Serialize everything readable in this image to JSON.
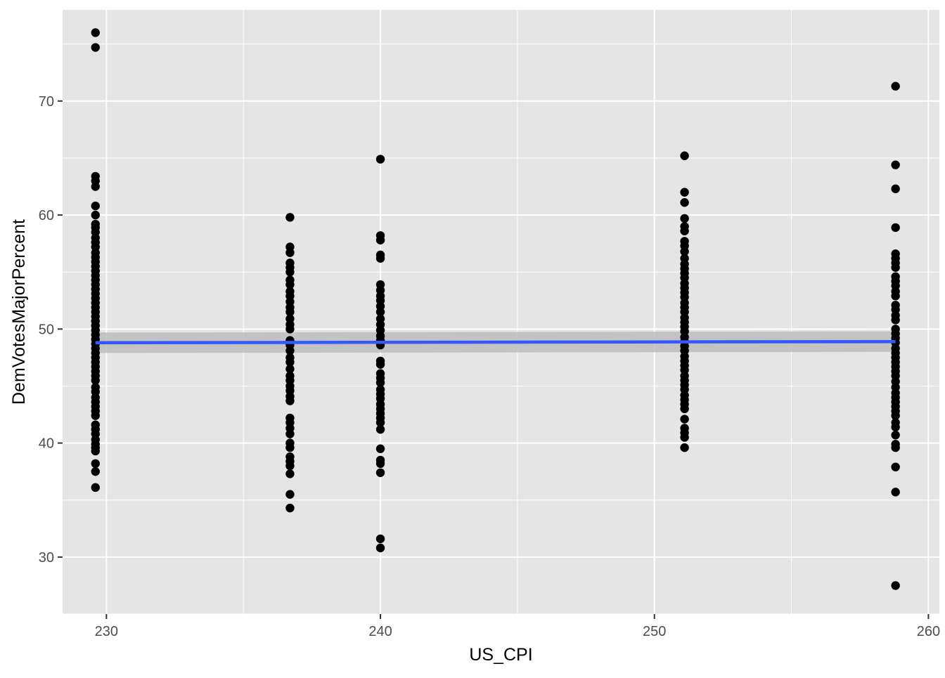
{
  "chart_data": {
    "type": "scatter",
    "title": "",
    "xlabel": "US_CPI",
    "ylabel": "DemVotesMajorPercent",
    "xlim": [
      228.4,
      260.4
    ],
    "ylim": [
      25.0,
      78.0
    ],
    "x_ticks": [
      230,
      240,
      250,
      260
    ],
    "x_tick_labels": [
      "230",
      "240",
      "250",
      "260"
    ],
    "y_ticks": [
      30,
      40,
      50,
      60,
      70
    ],
    "y_tick_labels": [
      "30",
      "40",
      "50",
      "60",
      "70"
    ],
    "grid": true,
    "legend": "none",
    "colors": {
      "panel_background": "#e5e5e5",
      "gridline": "#ffffff",
      "point": "#000000",
      "fit_line": "#3358ff",
      "confidence_band": "#bdbdbd"
    },
    "series": [
      {
        "type": "scatter",
        "points": [
          {
            "x": 229.6,
            "y": 76.0
          },
          {
            "x": 229.6,
            "y": 74.7
          },
          {
            "x": 229.6,
            "y": 63.4
          },
          {
            "x": 229.6,
            "y": 63.0
          },
          {
            "x": 229.6,
            "y": 62.5
          },
          {
            "x": 229.6,
            "y": 60.8
          },
          {
            "x": 229.6,
            "y": 60.0
          },
          {
            "x": 229.6,
            "y": 59.2
          },
          {
            "x": 229.6,
            "y": 58.9
          },
          {
            "x": 229.6,
            "y": 58.5
          },
          {
            "x": 229.6,
            "y": 58.0
          },
          {
            "x": 229.6,
            "y": 57.6
          },
          {
            "x": 229.6,
            "y": 57.2
          },
          {
            "x": 229.6,
            "y": 56.7
          },
          {
            "x": 229.6,
            "y": 56.3
          },
          {
            "x": 229.6,
            "y": 55.9
          },
          {
            "x": 229.6,
            "y": 55.5
          },
          {
            "x": 229.6,
            "y": 55.1
          },
          {
            "x": 229.6,
            "y": 54.7
          },
          {
            "x": 229.6,
            "y": 54.3
          },
          {
            "x": 229.6,
            "y": 53.9
          },
          {
            "x": 229.6,
            "y": 53.5
          },
          {
            "x": 229.6,
            "y": 53.1
          },
          {
            "x": 229.6,
            "y": 52.7
          },
          {
            "x": 229.6,
            "y": 52.3
          },
          {
            "x": 229.6,
            "y": 51.9
          },
          {
            "x": 229.6,
            "y": 51.5
          },
          {
            "x": 229.6,
            "y": 51.1
          },
          {
            "x": 229.6,
            "y": 50.7
          },
          {
            "x": 229.6,
            "y": 50.3
          },
          {
            "x": 229.6,
            "y": 49.9
          },
          {
            "x": 229.6,
            "y": 49.5
          },
          {
            "x": 229.6,
            "y": 49.1
          },
          {
            "x": 229.6,
            "y": 48.7
          },
          {
            "x": 229.6,
            "y": 48.3
          },
          {
            "x": 229.6,
            "y": 47.9
          },
          {
            "x": 229.6,
            "y": 47.5
          },
          {
            "x": 229.6,
            "y": 47.1
          },
          {
            "x": 229.6,
            "y": 46.7
          },
          {
            "x": 229.6,
            "y": 46.3
          },
          {
            "x": 229.6,
            "y": 45.9
          },
          {
            "x": 229.6,
            "y": 45.5
          },
          {
            "x": 229.6,
            "y": 44.9
          },
          {
            "x": 229.6,
            "y": 44.5
          },
          {
            "x": 229.6,
            "y": 44.0
          },
          {
            "x": 229.6,
            "y": 43.6
          },
          {
            "x": 229.6,
            "y": 43.2
          },
          {
            "x": 229.6,
            "y": 42.8
          },
          {
            "x": 229.6,
            "y": 42.4
          },
          {
            "x": 229.6,
            "y": 41.6
          },
          {
            "x": 229.6,
            "y": 41.2
          },
          {
            "x": 229.6,
            "y": 40.8
          },
          {
            "x": 229.6,
            "y": 40.3
          },
          {
            "x": 229.6,
            "y": 39.9
          },
          {
            "x": 229.6,
            "y": 39.6
          },
          {
            "x": 229.6,
            "y": 39.3
          },
          {
            "x": 229.6,
            "y": 38.2
          },
          {
            "x": 229.6,
            "y": 37.5
          },
          {
            "x": 229.6,
            "y": 36.1
          },
          {
            "x": 236.7,
            "y": 59.8
          },
          {
            "x": 236.7,
            "y": 57.2
          },
          {
            "x": 236.7,
            "y": 56.7
          },
          {
            "x": 236.7,
            "y": 55.8
          },
          {
            "x": 236.7,
            "y": 55.4
          },
          {
            "x": 236.7,
            "y": 55.0
          },
          {
            "x": 236.7,
            "y": 54.3
          },
          {
            "x": 236.7,
            "y": 53.9
          },
          {
            "x": 236.7,
            "y": 53.3
          },
          {
            "x": 236.7,
            "y": 52.9
          },
          {
            "x": 236.7,
            "y": 52.4
          },
          {
            "x": 236.7,
            "y": 51.9
          },
          {
            "x": 236.7,
            "y": 51.5
          },
          {
            "x": 236.7,
            "y": 50.9
          },
          {
            "x": 236.7,
            "y": 50.4
          },
          {
            "x": 236.7,
            "y": 50.0
          },
          {
            "x": 236.7,
            "y": 49.0
          },
          {
            "x": 236.7,
            "y": 48.6
          },
          {
            "x": 236.7,
            "y": 48.1
          },
          {
            "x": 236.7,
            "y": 47.5
          },
          {
            "x": 236.7,
            "y": 47.1
          },
          {
            "x": 236.7,
            "y": 46.5
          },
          {
            "x": 236.7,
            "y": 45.9
          },
          {
            "x": 236.7,
            "y": 45.5
          },
          {
            "x": 236.7,
            "y": 45.0
          },
          {
            "x": 236.7,
            "y": 44.6
          },
          {
            "x": 236.7,
            "y": 44.1
          },
          {
            "x": 236.7,
            "y": 43.7
          },
          {
            "x": 236.7,
            "y": 42.2
          },
          {
            "x": 236.7,
            "y": 41.8
          },
          {
            "x": 236.7,
            "y": 41.3
          },
          {
            "x": 236.7,
            "y": 40.8
          },
          {
            "x": 236.7,
            "y": 40.0
          },
          {
            "x": 236.7,
            "y": 39.6
          },
          {
            "x": 236.7,
            "y": 38.8
          },
          {
            "x": 236.7,
            "y": 38.4
          },
          {
            "x": 236.7,
            "y": 38.0
          },
          {
            "x": 236.7,
            "y": 37.3
          },
          {
            "x": 236.7,
            "y": 35.5
          },
          {
            "x": 236.7,
            "y": 34.3
          },
          {
            "x": 240.0,
            "y": 64.9
          },
          {
            "x": 240.0,
            "y": 58.2
          },
          {
            "x": 240.0,
            "y": 57.8
          },
          {
            "x": 240.0,
            "y": 56.5
          },
          {
            "x": 240.0,
            "y": 56.2
          },
          {
            "x": 240.0,
            "y": 53.9
          },
          {
            "x": 240.0,
            "y": 53.4
          },
          {
            "x": 240.0,
            "y": 52.9
          },
          {
            "x": 240.0,
            "y": 52.5
          },
          {
            "x": 240.0,
            "y": 52.0
          },
          {
            "x": 240.0,
            "y": 51.5
          },
          {
            "x": 240.0,
            "y": 50.9
          },
          {
            "x": 240.0,
            "y": 50.4
          },
          {
            "x": 240.0,
            "y": 49.9
          },
          {
            "x": 240.0,
            "y": 49.4
          },
          {
            "x": 240.0,
            "y": 49.0
          },
          {
            "x": 240.0,
            "y": 48.6
          },
          {
            "x": 240.0,
            "y": 47.2
          },
          {
            "x": 240.0,
            "y": 46.9
          },
          {
            "x": 240.0,
            "y": 46.1
          },
          {
            "x": 240.0,
            "y": 45.7
          },
          {
            "x": 240.0,
            "y": 45.3
          },
          {
            "x": 240.0,
            "y": 44.7
          },
          {
            "x": 240.0,
            "y": 44.3
          },
          {
            "x": 240.0,
            "y": 43.9
          },
          {
            "x": 240.0,
            "y": 43.4
          },
          {
            "x": 240.0,
            "y": 43.0
          },
          {
            "x": 240.0,
            "y": 42.6
          },
          {
            "x": 240.0,
            "y": 42.2
          },
          {
            "x": 240.0,
            "y": 41.8
          },
          {
            "x": 240.0,
            "y": 41.2
          },
          {
            "x": 240.0,
            "y": 39.5
          },
          {
            "x": 240.0,
            "y": 38.5
          },
          {
            "x": 240.0,
            "y": 38.2
          },
          {
            "x": 240.0,
            "y": 37.4
          },
          {
            "x": 240.0,
            "y": 31.6
          },
          {
            "x": 240.0,
            "y": 30.8
          },
          {
            "x": 251.1,
            "y": 65.2
          },
          {
            "x": 251.1,
            "y": 62.0
          },
          {
            "x": 251.1,
            "y": 61.1
          },
          {
            "x": 251.1,
            "y": 59.7
          },
          {
            "x": 251.1,
            "y": 59.0
          },
          {
            "x": 251.1,
            "y": 58.6
          },
          {
            "x": 251.1,
            "y": 57.7
          },
          {
            "x": 251.1,
            "y": 57.3
          },
          {
            "x": 251.1,
            "y": 56.8
          },
          {
            "x": 251.1,
            "y": 56.2
          },
          {
            "x": 251.1,
            "y": 55.7
          },
          {
            "x": 251.1,
            "y": 55.3
          },
          {
            "x": 251.1,
            "y": 54.9
          },
          {
            "x": 251.1,
            "y": 54.5
          },
          {
            "x": 251.1,
            "y": 54.0
          },
          {
            "x": 251.1,
            "y": 53.6
          },
          {
            "x": 251.1,
            "y": 53.2
          },
          {
            "x": 251.1,
            "y": 52.8
          },
          {
            "x": 251.1,
            "y": 52.3
          },
          {
            "x": 251.1,
            "y": 51.9
          },
          {
            "x": 251.1,
            "y": 51.5
          },
          {
            "x": 251.1,
            "y": 51.0
          },
          {
            "x": 251.1,
            "y": 50.6
          },
          {
            "x": 251.1,
            "y": 50.2
          },
          {
            "x": 251.1,
            "y": 49.8
          },
          {
            "x": 251.1,
            "y": 49.3
          },
          {
            "x": 251.1,
            "y": 48.9
          },
          {
            "x": 251.1,
            "y": 48.5
          },
          {
            "x": 251.1,
            "y": 48.1
          },
          {
            "x": 251.1,
            "y": 47.6
          },
          {
            "x": 251.1,
            "y": 47.2
          },
          {
            "x": 251.1,
            "y": 46.8
          },
          {
            "x": 251.1,
            "y": 46.4
          },
          {
            "x": 251.1,
            "y": 45.9
          },
          {
            "x": 251.1,
            "y": 45.5
          },
          {
            "x": 251.1,
            "y": 45.1
          },
          {
            "x": 251.1,
            "y": 44.7
          },
          {
            "x": 251.1,
            "y": 44.2
          },
          {
            "x": 251.1,
            "y": 43.8
          },
          {
            "x": 251.1,
            "y": 43.4
          },
          {
            "x": 251.1,
            "y": 43.0
          },
          {
            "x": 251.1,
            "y": 42.1
          },
          {
            "x": 251.1,
            "y": 41.3
          },
          {
            "x": 251.1,
            "y": 40.9
          },
          {
            "x": 251.1,
            "y": 40.5
          },
          {
            "x": 251.1,
            "y": 39.6
          },
          {
            "x": 258.8,
            "y": 71.3
          },
          {
            "x": 258.8,
            "y": 64.4
          },
          {
            "x": 258.8,
            "y": 62.3
          },
          {
            "x": 258.8,
            "y": 58.9
          },
          {
            "x": 258.8,
            "y": 56.6
          },
          {
            "x": 258.8,
            "y": 56.2
          },
          {
            "x": 258.8,
            "y": 55.8
          },
          {
            "x": 258.8,
            "y": 55.4
          },
          {
            "x": 258.8,
            "y": 54.6
          },
          {
            "x": 258.8,
            "y": 54.2
          },
          {
            "x": 258.8,
            "y": 53.8
          },
          {
            "x": 258.8,
            "y": 53.3
          },
          {
            "x": 258.8,
            "y": 52.9
          },
          {
            "x": 258.8,
            "y": 52.1
          },
          {
            "x": 258.8,
            "y": 51.7
          },
          {
            "x": 258.8,
            "y": 51.2
          },
          {
            "x": 258.8,
            "y": 50.8
          },
          {
            "x": 258.8,
            "y": 50.0
          },
          {
            "x": 258.8,
            "y": 49.6
          },
          {
            "x": 258.8,
            "y": 49.2
          },
          {
            "x": 258.8,
            "y": 48.8
          },
          {
            "x": 258.8,
            "y": 48.3
          },
          {
            "x": 258.8,
            "y": 47.9
          },
          {
            "x": 258.8,
            "y": 47.5
          },
          {
            "x": 258.8,
            "y": 47.1
          },
          {
            "x": 258.8,
            "y": 46.7
          },
          {
            "x": 258.8,
            "y": 46.3
          },
          {
            "x": 258.8,
            "y": 45.9
          },
          {
            "x": 258.8,
            "y": 45.4
          },
          {
            "x": 258.8,
            "y": 44.9
          },
          {
            "x": 258.8,
            "y": 44.4
          },
          {
            "x": 258.8,
            "y": 44.0
          },
          {
            "x": 258.8,
            "y": 43.6
          },
          {
            "x": 258.8,
            "y": 43.2
          },
          {
            "x": 258.8,
            "y": 42.8
          },
          {
            "x": 258.8,
            "y": 42.4
          },
          {
            "x": 258.8,
            "y": 41.8
          },
          {
            "x": 258.8,
            "y": 41.4
          },
          {
            "x": 258.8,
            "y": 40.7
          },
          {
            "x": 258.8,
            "y": 39.9
          },
          {
            "x": 258.8,
            "y": 39.6
          },
          {
            "x": 258.8,
            "y": 37.9
          },
          {
            "x": 258.8,
            "y": 35.7
          },
          {
            "x": 258.8,
            "y": 27.5
          }
        ]
      },
      {
        "type": "line",
        "method": "linear fit with confidence band",
        "x": [
          229.6,
          258.8
        ],
        "y": [
          48.8,
          48.9
        ],
        "band_lower": [
          47.9,
          48.0
        ],
        "band_upper": [
          49.7,
          49.8
        ]
      }
    ]
  }
}
